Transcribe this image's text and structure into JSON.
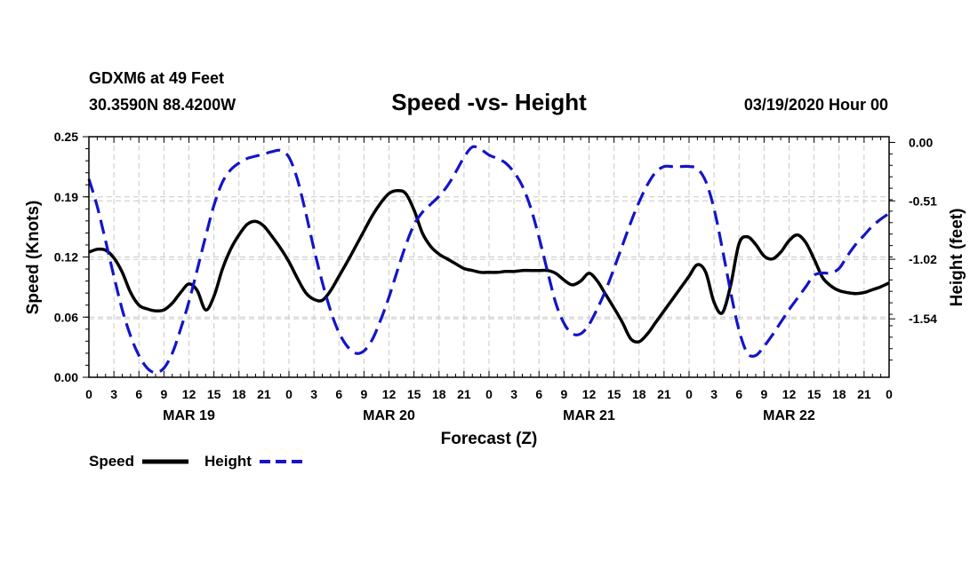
{
  "header": {
    "station": "GDXM6 at 49 Feet",
    "coords": "30.3590N 88.4200W",
    "title": "Speed -vs- Height",
    "datetime": "03/19/2020 Hour 00"
  },
  "chart_data": {
    "type": "line",
    "title": "Speed -vs- Height",
    "xlabel": "Forecast (Z)",
    "ylabel_left": "Speed (Knots)",
    "ylabel_right": "Height (feet)",
    "x_range_hours": [
      0,
      96
    ],
    "x_tick_labels": [
      "0",
      "3",
      "6",
      "9",
      "12",
      "15",
      "18",
      "21",
      "0",
      "3",
      "6",
      "9",
      "12",
      "15",
      "18",
      "21",
      "0",
      "3",
      "6",
      "9",
      "12",
      "15",
      "18",
      "21",
      "0",
      "3",
      "6",
      "9",
      "12",
      "15",
      "18",
      "21",
      "0"
    ],
    "date_labels": [
      {
        "label": "MAR 19",
        "hour": 12
      },
      {
        "label": "MAR 20",
        "hour": 36
      },
      {
        "label": "MAR 21",
        "hour": 60
      },
      {
        "label": "MAR 22",
        "hour": 84
      }
    ],
    "ylim_left": [
      0.0,
      0.25
    ],
    "yticks_left": [
      "0.00",
      "0.06",
      "0.12",
      "0.19",
      "0.25"
    ],
    "ylim_right": [
      -2.05,
      0.05
    ],
    "yticks_right": [
      "0.00",
      "-0.51",
      "-1.02",
      "-1.54"
    ],
    "grid": true,
    "series": [
      {
        "name": "Speed",
        "color": "#000000",
        "axis": "left",
        "x": [
          0,
          1,
          2,
          3,
          4,
          5,
          6,
          7,
          8,
          9,
          10,
          11,
          12,
          13,
          14,
          15,
          16,
          17,
          18,
          19,
          20,
          21,
          22,
          23,
          24,
          25,
          26,
          27,
          28,
          29,
          30,
          31,
          32,
          33,
          34,
          35,
          36,
          37,
          38,
          39,
          40,
          41,
          42,
          43,
          44,
          45,
          46,
          47,
          48,
          49,
          50,
          51,
          52,
          53,
          54,
          55,
          56,
          57,
          58,
          59,
          60,
          61,
          62,
          63,
          64,
          65,
          66,
          67,
          68,
          69,
          70,
          71,
          72,
          73,
          74,
          75,
          76,
          77,
          78,
          79,
          80,
          81,
          82,
          83,
          84,
          85,
          86,
          87,
          88,
          89,
          90,
          91,
          92,
          93,
          94,
          95,
          96
        ],
        "values": [
          0.13,
          0.133,
          0.132,
          0.124,
          0.109,
          0.088,
          0.075,
          0.071,
          0.069,
          0.07,
          0.077,
          0.088,
          0.097,
          0.09,
          0.07,
          0.084,
          0.112,
          0.133,
          0.148,
          0.159,
          0.162,
          0.157,
          0.146,
          0.134,
          0.12,
          0.103,
          0.088,
          0.081,
          0.08,
          0.09,
          0.105,
          0.12,
          0.136,
          0.152,
          0.168,
          0.181,
          0.191,
          0.194,
          0.191,
          0.174,
          0.15,
          0.136,
          0.128,
          0.123,
          0.118,
          0.113,
          0.111,
          0.109,
          0.109,
          0.109,
          0.11,
          0.11,
          0.111,
          0.111,
          0.111,
          0.111,
          0.108,
          0.101,
          0.096,
          0.1,
          0.108,
          0.1,
          0.086,
          0.072,
          0.057,
          0.04,
          0.037,
          0.045,
          0.057,
          0.069,
          0.081,
          0.093,
          0.105,
          0.117,
          0.109,
          0.078,
          0.067,
          0.096,
          0.139,
          0.146,
          0.138,
          0.126,
          0.123,
          0.13,
          0.142,
          0.148,
          0.14,
          0.123,
          0.104,
          0.095,
          0.09,
          0.088,
          0.087,
          0.088,
          0.091,
          0.094,
          0.098
        ]
      },
      {
        "name": "Height",
        "color": "#1414c8",
        "axis": "right",
        "x": [
          0,
          1,
          2,
          3,
          4,
          5,
          6,
          7,
          8,
          9,
          10,
          11,
          12,
          13,
          14,
          15,
          16,
          17,
          18,
          19,
          20,
          21,
          22,
          23,
          24,
          25,
          26,
          27,
          28,
          29,
          30,
          31,
          32,
          33,
          34,
          35,
          36,
          37,
          38,
          39,
          40,
          41,
          42,
          43,
          44,
          45,
          46,
          47,
          48,
          49,
          50,
          51,
          52,
          53,
          54,
          55,
          56,
          57,
          58,
          59,
          60,
          61,
          62,
          63,
          64,
          65,
          66,
          67,
          68,
          69,
          70,
          71,
          72,
          73,
          74,
          75,
          76,
          77,
          78,
          79,
          80,
          81,
          82,
          83,
          84,
          85,
          86,
          87,
          88,
          89,
          90,
          91,
          92,
          93,
          94,
          95,
          96
        ],
        "values": [
          -0.32,
          -0.56,
          -0.86,
          -1.17,
          -1.46,
          -1.69,
          -1.86,
          -1.97,
          -2.01,
          -1.97,
          -1.84,
          -1.63,
          -1.39,
          -1.11,
          -0.82,
          -0.55,
          -0.35,
          -0.24,
          -0.18,
          -0.14,
          -0.12,
          -0.1,
          -0.08,
          -0.07,
          -0.13,
          -0.32,
          -0.61,
          -0.93,
          -1.22,
          -1.47,
          -1.66,
          -1.78,
          -1.84,
          -1.82,
          -1.72,
          -1.55,
          -1.35,
          -1.12,
          -0.9,
          -0.72,
          -0.61,
          -0.54,
          -0.47,
          -0.38,
          -0.26,
          -0.13,
          -0.04,
          -0.06,
          -0.11,
          -0.14,
          -0.18,
          -0.26,
          -0.38,
          -0.57,
          -0.83,
          -1.12,
          -1.4,
          -1.58,
          -1.67,
          -1.67,
          -1.59,
          -1.45,
          -1.29,
          -1.1,
          -0.9,
          -0.7,
          -0.52,
          -0.37,
          -0.26,
          -0.21,
          -0.21,
          -0.21,
          -0.21,
          -0.23,
          -0.34,
          -0.58,
          -0.93,
          -1.31,
          -1.64,
          -1.84,
          -1.86,
          -1.78,
          -1.68,
          -1.57,
          -1.46,
          -1.36,
          -1.26,
          -1.16,
          -1.14,
          -1.14,
          -1.1,
          -0.99,
          -0.89,
          -0.81,
          -0.73,
          -0.67,
          -0.62
        ]
      }
    ]
  },
  "legend": {
    "speed_label": "Speed",
    "height_label": "Height",
    "speed_color": "#000000",
    "height_color": "#1414c8"
  }
}
